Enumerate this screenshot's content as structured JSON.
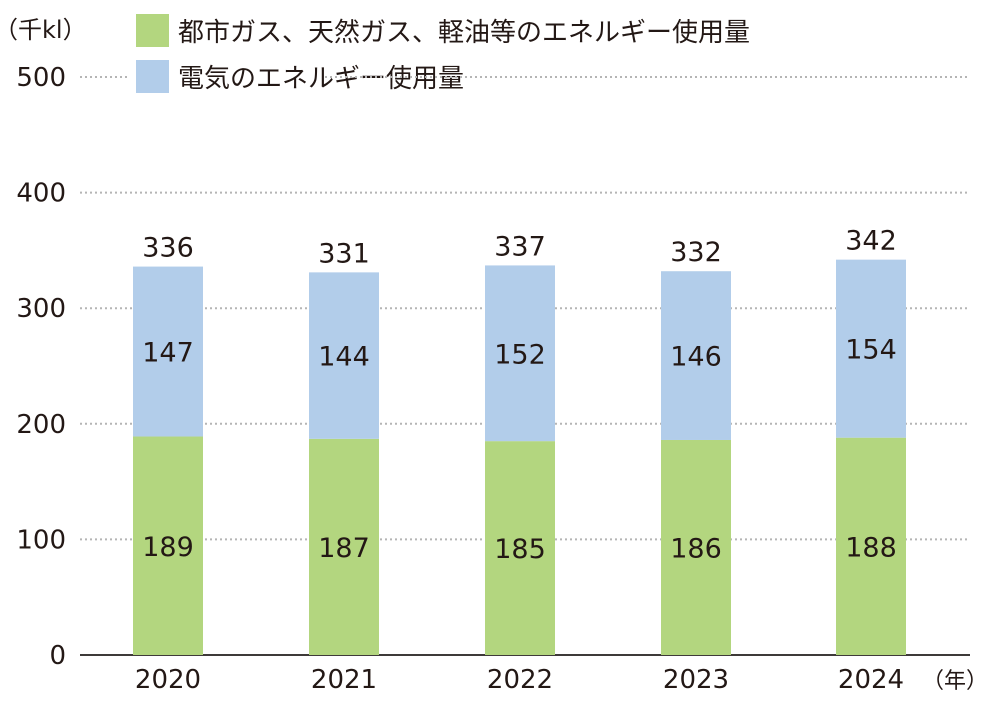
{
  "chart_data": {
    "type": "bar",
    "stacked": true,
    "unit_label": "（千kl）",
    "x_unit_label": "（年）",
    "categories": [
      "2020",
      "2021",
      "2022",
      "2023",
      "2024"
    ],
    "series": [
      {
        "name": "都市ガス、天然ガス、軽油等のエネルギー使用量",
        "values": [
          189,
          187,
          185,
          186,
          188
        ],
        "color": "#b3d67f"
      },
      {
        "name": "電気のエネルギー使用量",
        "values": [
          147,
          144,
          152,
          146,
          154
        ],
        "color": "#b2cdea"
      }
    ],
    "totals": [
      336,
      331,
      337,
      332,
      342
    ],
    "ylim": [
      0,
      500
    ],
    "yticks": [
      0,
      100,
      200,
      300,
      400,
      500
    ],
    "grid": true,
    "grid_style": "dotted",
    "legend": "top"
  }
}
